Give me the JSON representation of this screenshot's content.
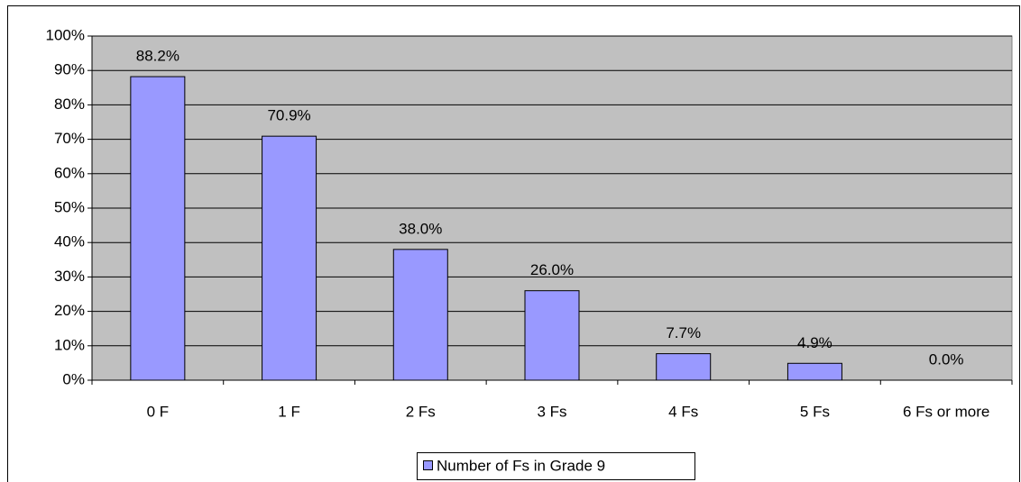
{
  "chart_data": {
    "type": "bar",
    "categories": [
      "0 F",
      "1 F",
      "2 Fs",
      "3 Fs",
      "4 Fs",
      "5 Fs",
      "6 Fs or more"
    ],
    "series": [
      {
        "name": "Number of Fs in Grade 9",
        "color": "#9999ff",
        "values": [
          88.2,
          70.9,
          38.0,
          26.0,
          7.7,
          4.9,
          0.0
        ],
        "value_labels": [
          "88.2%",
          "70.9%",
          "38.0%",
          "26.0%",
          "7.7%",
          "4.9%",
          "0.0%"
        ]
      }
    ],
    "ylim": [
      0,
      100
    ],
    "yticks": [
      {
        "value": 0,
        "label": "0%"
      },
      {
        "value": 10,
        "label": "10%"
      },
      {
        "value": 20,
        "label": "20%"
      },
      {
        "value": 30,
        "label": "30%"
      },
      {
        "value": 40,
        "label": "40%"
      },
      {
        "value": 50,
        "label": "50%"
      },
      {
        "value": 60,
        "label": "60%"
      },
      {
        "value": 70,
        "label": "70%"
      },
      {
        "value": 80,
        "label": "80%"
      },
      {
        "value": 90,
        "label": "90%"
      },
      {
        "value": 100,
        "label": "100%"
      }
    ],
    "grid": true
  }
}
